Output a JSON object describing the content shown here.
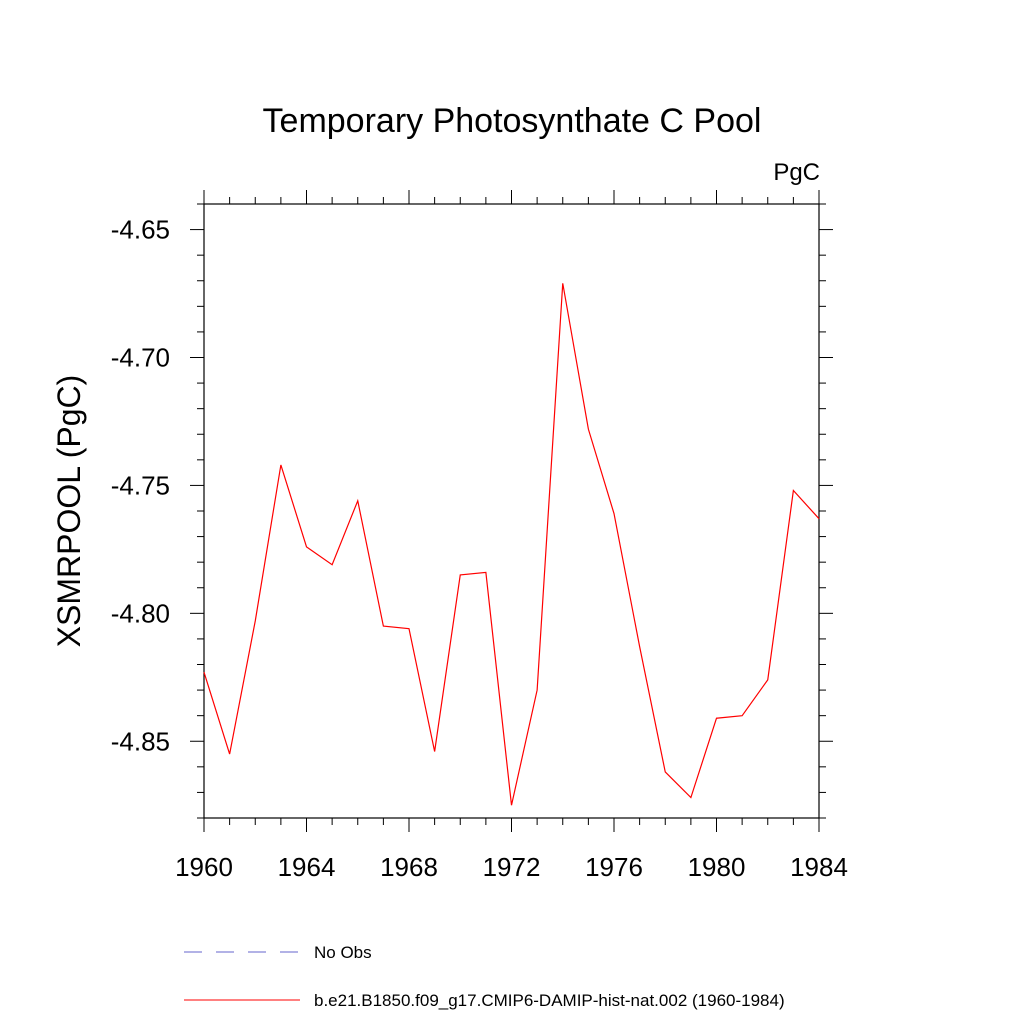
{
  "chart_data": {
    "type": "line",
    "title": "Temporary Photosynthate C Pool",
    "units_label": "PgC",
    "ylabel": "XSMRPOOL  (PgC)",
    "xlabel": "",
    "xlim": [
      1960,
      1984
    ],
    "ylim": [
      -4.88,
      -4.64
    ],
    "xticks": [
      1960,
      1964,
      1968,
      1972,
      1976,
      1980,
      1984
    ],
    "xtick_labels": [
      "1960",
      "1964",
      "1968",
      "1972",
      "1976",
      "1980",
      "1984"
    ],
    "yticks": [
      -4.65,
      -4.7,
      -4.75,
      -4.8,
      -4.85
    ],
    "ytick_labels": [
      "-4.65",
      "-4.70",
      "-4.75",
      "-4.80",
      "-4.85"
    ],
    "grid": false,
    "legend_position": "bottom-left",
    "series": [
      {
        "name": "No Obs",
        "color": "#6666cc",
        "dash": "dashed",
        "x": [],
        "values": []
      },
      {
        "name": "b.e21.B1850.f09_g17.CMIP6-DAMIP-hist-nat.002 (1960-1984)",
        "color": "#ff0000",
        "dash": "solid",
        "x": [
          1960,
          1961,
          1962,
          1963,
          1964,
          1965,
          1966,
          1967,
          1968,
          1969,
          1970,
          1971,
          1972,
          1973,
          1974,
          1975,
          1976,
          1977,
          1978,
          1979,
          1980,
          1981,
          1982,
          1983,
          1984
        ],
        "values": [
          -4.823,
          -4.855,
          -4.803,
          -4.742,
          -4.774,
          -4.781,
          -4.756,
          -4.805,
          -4.806,
          -4.854,
          -4.785,
          -4.784,
          -4.875,
          -4.83,
          -4.671,
          -4.728,
          -4.761,
          -4.813,
          -4.862,
          -4.872,
          -4.841,
          -4.84,
          -4.826,
          -4.752,
          -4.763
        ]
      }
    ]
  }
}
